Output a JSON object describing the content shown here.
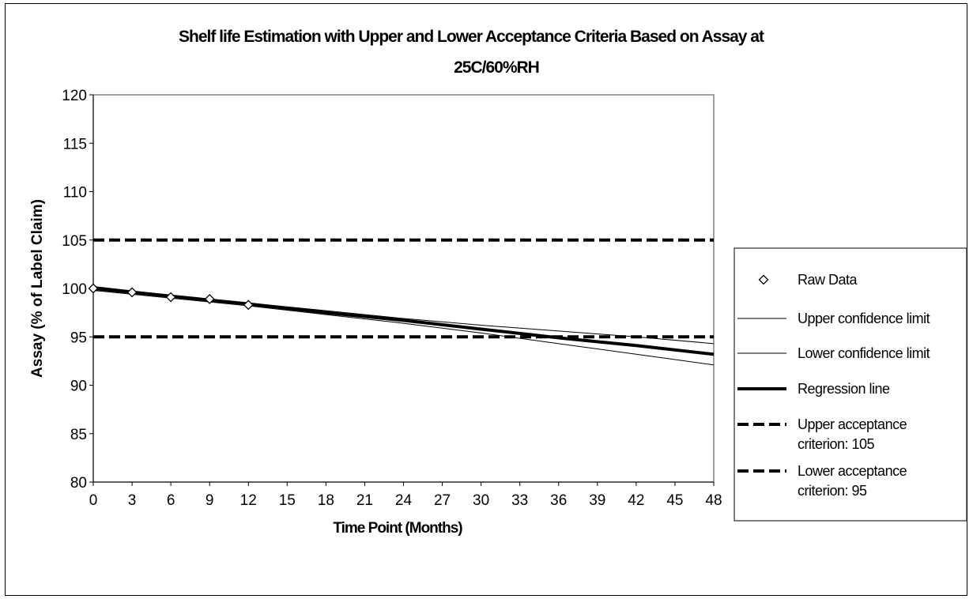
{
  "chart_data": {
    "type": "line",
    "title_line1": "Shelf life Estimation with Upper and Lower Acceptance Criteria Based on Assay at",
    "title_line2": "25C/60%RH",
    "xlabel": "Time Point (Months)",
    "ylabel": "Assay (% of Label Claim)",
    "xlim": [
      0,
      48
    ],
    "ylim": [
      80,
      120
    ],
    "xticks": [
      0,
      3,
      6,
      9,
      12,
      15,
      18,
      21,
      24,
      27,
      30,
      33,
      36,
      39,
      42,
      45,
      48
    ],
    "yticks": [
      80,
      85,
      90,
      95,
      100,
      105,
      110,
      115,
      120
    ],
    "grid": false,
    "legend_position": "right",
    "series": [
      {
        "name": "Raw Data",
        "style": "markers",
        "marker": "diamond",
        "x": [
          0,
          3,
          6,
          9,
          12
        ],
        "y": [
          100.0,
          99.6,
          99.1,
          98.9,
          98.3
        ]
      },
      {
        "name": "Upper confidence limit",
        "style": "thin",
        "x": [
          0,
          6,
          12,
          18,
          24,
          30,
          36,
          42,
          48
        ],
        "y": [
          100.2,
          99.3,
          98.5,
          97.7,
          96.9,
          96.2,
          95.6,
          95.0,
          94.3
        ]
      },
      {
        "name": "Lower confidence limit",
        "style": "thin",
        "x": [
          0,
          6,
          12,
          18,
          24,
          30,
          36,
          42,
          48
        ],
        "y": [
          99.8,
          99.0,
          98.2,
          97.3,
          96.4,
          95.4,
          94.3,
          93.2,
          92.1
        ]
      },
      {
        "name": "Regression line",
        "style": "thick",
        "x": [
          0,
          6,
          12,
          18,
          24,
          30,
          36,
          42,
          48
        ],
        "y": [
          100.0,
          99.2,
          98.4,
          97.5,
          96.7,
          95.8,
          94.9,
          94.1,
          93.2
        ]
      },
      {
        "name": "Upper acceptance criterion: 105",
        "style": "dashed",
        "x": [
          0,
          48
        ],
        "y": [
          105,
          105
        ]
      },
      {
        "name": "Lower acceptance criterion: 95",
        "style": "dashed",
        "x": [
          0,
          48
        ],
        "y": [
          95,
          95
        ]
      }
    ],
    "legend": {
      "raw": "Raw Data",
      "ucl": "Upper confidence limit",
      "lcl": "Lower confidence limit",
      "reg": "Regression line",
      "uac_line1": "Upper acceptance",
      "uac_line2": "criterion: 105",
      "lac_line1": "Lower acceptance",
      "lac_line2": "criterion: 95"
    },
    "colors": {
      "line": "#000000",
      "background": "#ffffff"
    }
  }
}
